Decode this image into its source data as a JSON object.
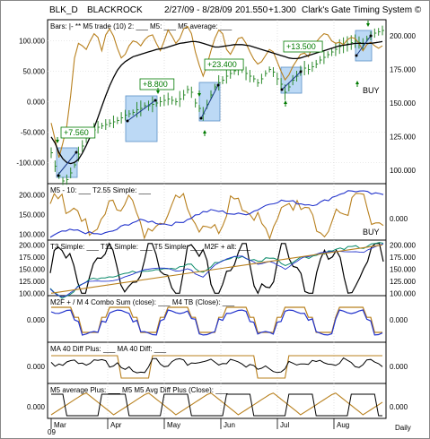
{
  "header": {
    "symbol": "BLK_D",
    "name": "BLACKROCK",
    "range": "2/27/09 - 8/28/09",
    "price": "201.550",
    "change": "+1.300",
    "system": "Clark's Gate Timing System ©"
  },
  "footer": {
    "months": [
      "Mar",
      "Apr",
      "May",
      "Jun",
      "Jul",
      "Aug"
    ],
    "year": "09",
    "period": "Daily"
  },
  "colors": {
    "price": "#000000",
    "green_bars": "#2e8b2e",
    "gold": "#b8801e",
    "blue": "#2233cc",
    "teal": "#0a8a6a",
    "box_fill": "#bcd9f5",
    "box_stroke": "#5a8fc7",
    "annotation": "#007a00"
  },
  "chart_data": [
    {
      "id": "price-panel",
      "type": "line",
      "label": "Bars: |-   ** M5 trade (10) 2: ___   M5: ___   M5 average: ___",
      "y_left_ticks": [
        "100.000",
        "50.000",
        "0.000",
        "-50.000",
        "-100.000"
      ],
      "y_right_ticks": [
        "200.000",
        "175.000",
        "150.000",
        "125.000",
        "100.000"
      ],
      "y_right_range": [
        90,
        212
      ],
      "y_left_range": [
        -135,
        135
      ],
      "price_series": [
        113,
        103,
        96,
        92,
        93,
        98,
        104,
        112,
        118,
        124,
        128,
        130,
        132,
        133,
        134,
        135,
        136,
        137,
        139,
        141,
        142,
        143,
        145,
        146,
        148,
        148,
        149,
        150,
        151,
        152,
        153,
        152,
        151,
        153,
        156,
        160,
        158,
        150,
        146,
        142,
        149,
        156,
        162,
        165,
        167,
        170,
        172,
        174,
        175,
        176,
        172,
        170,
        168,
        165,
        168,
        172,
        175,
        173,
        168,
        164,
        158,
        162,
        167,
        170,
        174,
        176,
        175,
        177,
        179,
        182,
        184,
        186,
        188,
        190,
        192,
        193,
        194,
        195,
        196,
        195,
        194,
        198,
        200,
        202,
        203,
        204
      ],
      "m5_series": [
        -35,
        -62,
        -92,
        -68,
        -40,
        10,
        72,
        96,
        92,
        86,
        100,
        112,
        106,
        84,
        110,
        120,
        108,
        88,
        72,
        78,
        92,
        100,
        98,
        92,
        102,
        108,
        110,
        96,
        84,
        100,
        118,
        108,
        96,
        104,
        120,
        124,
        112,
        82,
        60,
        42,
        60,
        84,
        104,
        118,
        112,
        86,
        78,
        90,
        104,
        106,
        96,
        82,
        70,
        62,
        66,
        76,
        86,
        82,
        66,
        50,
        36,
        44,
        58,
        68,
        78,
        80,
        74,
        90,
        98,
        106,
        112,
        110,
        100,
        96,
        98,
        94,
        102,
        106,
        104,
        96,
        84,
        94,
        98,
        92,
        88,
        92
      ],
      "m5_average_series": [
        -58,
        -68,
        -84,
        -94,
        -100,
        -102,
        -100,
        -95,
        -85,
        -72,
        -58,
        -43,
        -26,
        -8,
        10,
        26,
        40,
        52,
        60,
        66,
        70,
        74,
        76,
        78,
        80,
        82,
        84,
        86,
        87,
        88,
        90,
        92,
        94,
        96,
        97,
        98,
        99,
        99,
        98,
        96,
        94,
        92,
        90,
        90,
        91,
        92,
        93,
        94,
        94,
        94,
        93,
        92,
        90,
        88,
        86,
        84,
        82,
        80,
        78,
        76,
        74,
        72,
        71,
        71,
        72,
        74,
        76,
        78,
        80,
        82,
        84,
        86,
        88,
        90,
        92,
        93,
        94,
        95,
        96,
        96,
        96,
        96,
        96,
        97,
        98,
        99
      ],
      "trade_annotations": [
        "+7.560",
        "+8.800",
        "+23.400",
        "+13.500"
      ],
      "signal_label": "BUY"
    },
    {
      "id": "m5-10-panel",
      "type": "line",
      "label": "M5 - 10: ___   T2.55 Simple: ___",
      "y_left_ticks": [
        "200.000",
        "150.000",
        "100.000"
      ],
      "y_right_ticks": [
        "0.000"
      ],
      "y_range": [
        85,
        228
      ],
      "signal_label": "BUY"
    },
    {
      "id": "t3-panel",
      "type": "line",
      "label": "T3 Simple: ___   T11 Simple: ___   T5 Simple: ___   M2F + alt: ___",
      "y_left_ticks": [
        "200.000",
        "175.000",
        "150.000",
        "125.000",
        "100.000"
      ],
      "y_right_ticks": [
        "200.000",
        "175.000",
        "150.000",
        "125.000",
        "100.000"
      ],
      "y_range": [
        95,
        210
      ]
    },
    {
      "id": "combo-panel",
      "type": "line",
      "label": "M2F + / M 4 Combo Sum (close): ___   M4 TB (Close): ___",
      "y_left_ticks": [
        "0.000"
      ],
      "y_right_ticks": [
        "0.000"
      ]
    },
    {
      "id": "ma40-panel",
      "type": "line",
      "label": "MA 40 Diff Plus: ___   MA 40 Diff: ___",
      "y_left_ticks": [
        "0.000"
      ],
      "y_right_ticks": [
        "0.000"
      ]
    },
    {
      "id": "m5avg-panel",
      "type": "line",
      "label": "M5 average Plus: ___   M5 M5 Avg Diff Plus (Close): ___",
      "y_left_ticks": [
        "0.000"
      ],
      "y_right_ticks": [
        "0.000"
      ]
    }
  ]
}
